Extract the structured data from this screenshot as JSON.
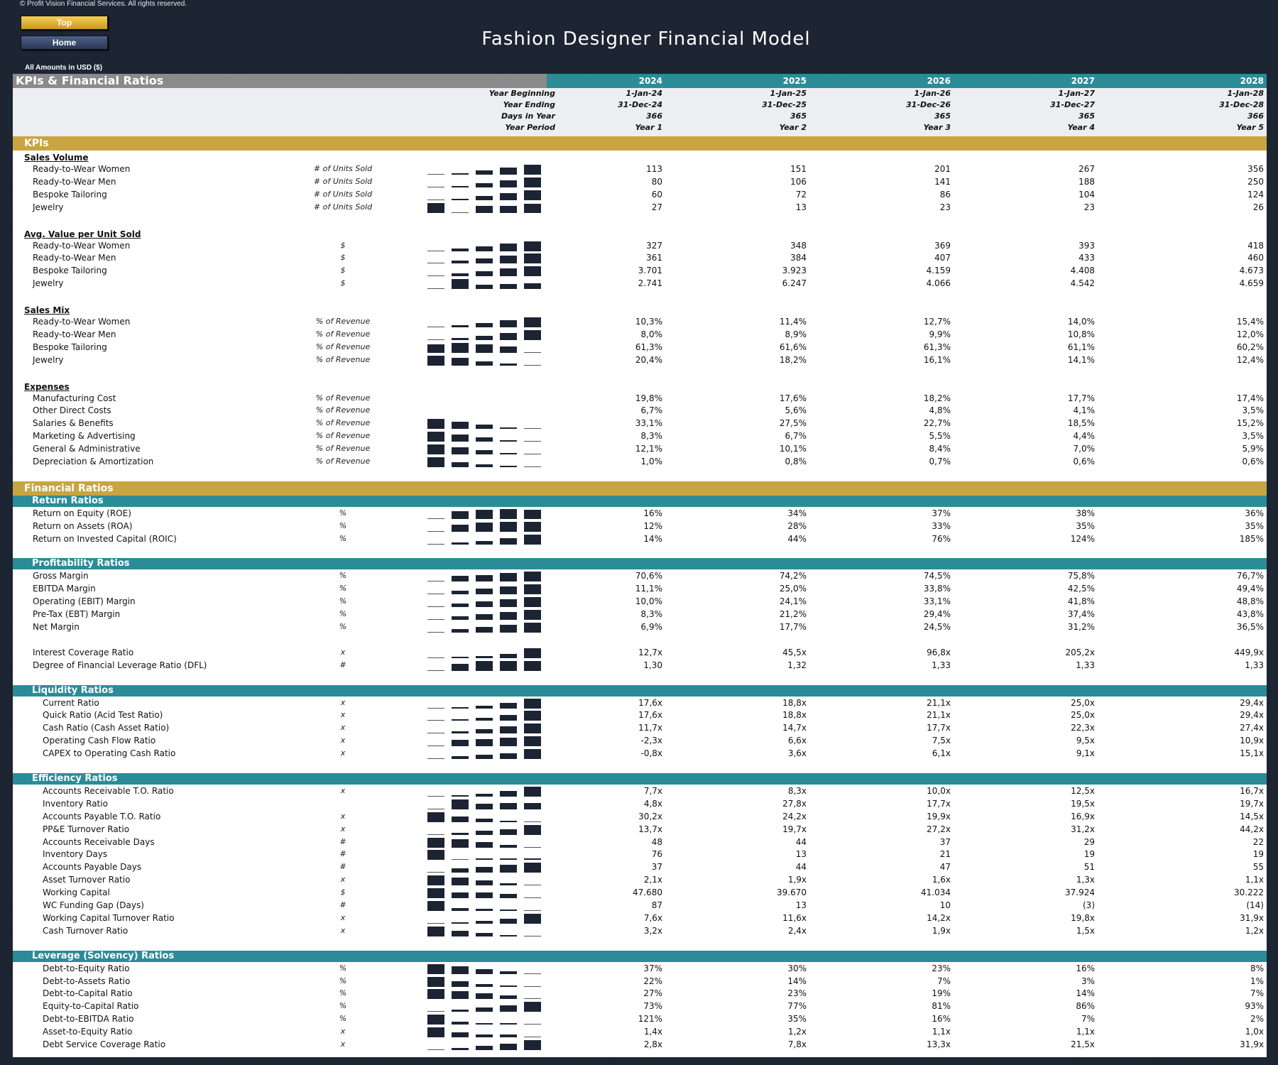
{
  "header": {
    "copyright": "© Profit Vision Financial Services. All rights reserved.",
    "top_button": "Top",
    "home_button": "Home",
    "title": "Fashion Designer Financial Model",
    "amounts_note": "All Amounts in  USD ($)"
  },
  "sheet": {
    "title": "KPIs & Financial Ratios",
    "years": [
      "2024",
      "2025",
      "2026",
      "2027",
      "2028"
    ],
    "meta": [
      {
        "label": "Year Beginning",
        "values": [
          "1-Jan-24",
          "1-Jan-25",
          "1-Jan-26",
          "1-Jan-27",
          "1-Jan-28"
        ]
      },
      {
        "label": "Year Ending",
        "values": [
          "31-Dec-24",
          "31-Dec-25",
          "31-Dec-26",
          "31-Dec-27",
          "31-Dec-28"
        ]
      },
      {
        "label": "Days in Year",
        "values": [
          "366",
          "365",
          "365",
          "365",
          "366"
        ]
      },
      {
        "label": "Year Period",
        "values": [
          "Year 1",
          "Year 2",
          "Year 3",
          "Year 4",
          "Year 5"
        ]
      }
    ]
  },
  "sections": [
    {
      "type": "gold",
      "label": "KPIs"
    },
    {
      "type": "group",
      "label": "Sales Volume"
    },
    {
      "type": "row",
      "label": "Ready-to-Wear Women",
      "unit": "# of Units Sold",
      "values": [
        "113",
        "151",
        "201",
        "267",
        "356"
      ],
      "spark": [
        0,
        0.15,
        0.4,
        0.7,
        1
      ]
    },
    {
      "type": "row",
      "label": "Ready-to-Wear Men",
      "unit": "# of Units Sold",
      "values": [
        "80",
        "106",
        "141",
        "188",
        "250"
      ],
      "spark": [
        0,
        0.15,
        0.4,
        0.7,
        1
      ]
    },
    {
      "type": "row",
      "label": "Bespoke Tailoring",
      "unit": "# of Units Sold",
      "values": [
        "60",
        "72",
        "86",
        "104",
        "124"
      ],
      "spark": [
        0,
        0.15,
        0.4,
        0.7,
        1
      ]
    },
    {
      "type": "row",
      "label": "Jewelry",
      "unit": "# of Units Sold",
      "values": [
        "27",
        "13",
        "23",
        "23",
        "26"
      ],
      "spark": [
        1,
        0,
        0.7,
        0.7,
        0.9
      ]
    },
    {
      "type": "gap"
    },
    {
      "type": "group",
      "label": "Avg. Value per Unit Sold"
    },
    {
      "type": "row",
      "label": "Ready-to-Wear Women",
      "unit": "$",
      "values": [
        "327",
        "348",
        "369",
        "393",
        "418"
      ],
      "spark": [
        0,
        0.25,
        0.5,
        0.75,
        1
      ]
    },
    {
      "type": "row",
      "label": "Ready-to-Wear Men",
      "unit": "$",
      "values": [
        "361",
        "384",
        "407",
        "433",
        "460"
      ],
      "spark": [
        0,
        0.25,
        0.5,
        0.75,
        1
      ]
    },
    {
      "type": "row",
      "label": "Bespoke Tailoring",
      "unit": "$",
      "values": [
        "3.701",
        "3.923",
        "4.159",
        "4.408",
        "4.673"
      ],
      "spark": [
        0,
        0.25,
        0.5,
        0.75,
        1
      ]
    },
    {
      "type": "row",
      "label": "Jewelry",
      "unit": "$",
      "values": [
        "2.741",
        "6.247",
        "4.066",
        "4.542",
        "4.659"
      ],
      "spark": [
        0,
        1,
        0.4,
        0.5,
        0.55
      ]
    },
    {
      "type": "gap"
    },
    {
      "type": "group",
      "label": "Sales Mix"
    },
    {
      "type": "row",
      "label": "Ready-to-Wear Women",
      "unit": "% of Revenue",
      "values": [
        "10,3%",
        "11,4%",
        "12,7%",
        "14,0%",
        "15,4%"
      ],
      "spark": [
        0,
        0.2,
        0.45,
        0.7,
        1
      ]
    },
    {
      "type": "row",
      "label": "Ready-to-Wear Men",
      "unit": "% of Revenue",
      "values": [
        "8,0%",
        "8,9%",
        "9,9%",
        "10,8%",
        "12,0%"
      ],
      "spark": [
        0,
        0.2,
        0.45,
        0.7,
        1
      ]
    },
    {
      "type": "row",
      "label": "Bespoke Tailoring",
      "unit": "% of Revenue",
      "values": [
        "61,3%",
        "61,6%",
        "61,3%",
        "61,1%",
        "60,2%"
      ],
      "spark": [
        0.85,
        1,
        0.85,
        0.65,
        0
      ]
    },
    {
      "type": "row",
      "label": "Jewelry",
      "unit": "% of Revenue",
      "values": [
        "20,4%",
        "18,2%",
        "16,1%",
        "14,1%",
        "12,4%"
      ],
      "spark": [
        1,
        0.75,
        0.45,
        0.2,
        0
      ]
    },
    {
      "type": "gap"
    },
    {
      "type": "group",
      "label": "Expenses"
    },
    {
      "type": "row",
      "label": "Manufacturing Cost",
      "unit": "% of Revenue",
      "values": [
        "19,8%",
        "17,6%",
        "18,2%",
        "17,7%",
        "17,4%"
      ],
      "spark": null
    },
    {
      "type": "row",
      "label": "Other Direct Costs",
      "unit": "% of Revenue",
      "values": [
        "6,7%",
        "5,6%",
        "4,8%",
        "4,1%",
        "3,5%"
      ],
      "spark": null
    },
    {
      "type": "row",
      "label": "Salaries & Benefits",
      "unit": "% of Revenue",
      "values": [
        "33,1%",
        "27,5%",
        "22,7%",
        "18,5%",
        "15,2%"
      ],
      "spark": [
        1,
        0.7,
        0.4,
        0.15,
        0
      ]
    },
    {
      "type": "row",
      "label": "Marketing & Advertising",
      "unit": "% of Revenue",
      "values": [
        "8,3%",
        "6,7%",
        "5,5%",
        "4,4%",
        "3,5%"
      ],
      "spark": [
        1,
        0.7,
        0.4,
        0.15,
        0
      ]
    },
    {
      "type": "row",
      "label": "General & Administrative",
      "unit": "% of Revenue",
      "values": [
        "12,1%",
        "10,1%",
        "8,4%",
        "7,0%",
        "5,9%"
      ],
      "spark": [
        1,
        0.7,
        0.4,
        0.15,
        0
      ]
    },
    {
      "type": "row",
      "label": "Depreciation & Amortization",
      "unit": "% of Revenue",
      "values": [
        "1,0%",
        "0,8%",
        "0,7%",
        "0,6%",
        "0,6%"
      ],
      "spark": [
        1,
        0.5,
        0.25,
        0.05,
        0
      ]
    },
    {
      "type": "gap"
    },
    {
      "type": "gold",
      "label": "Financial Ratios"
    },
    {
      "type": "teal",
      "label": "Return Ratios"
    },
    {
      "type": "row",
      "label": "Return on Equity (ROE)",
      "unit": "%",
      "values": [
        "16%",
        "34%",
        "37%",
        "38%",
        "36%"
      ],
      "spark": [
        0,
        0.8,
        0.95,
        1,
        0.9
      ]
    },
    {
      "type": "row",
      "label": "Return on Assets (ROA)",
      "unit": "%",
      "values": [
        "12%",
        "28%",
        "33%",
        "35%",
        "35%"
      ],
      "spark": [
        0,
        0.7,
        0.9,
        1,
        1
      ]
    },
    {
      "type": "row",
      "label": "Return on Invested Capital (ROIC)",
      "unit": "%",
      "values": [
        "14%",
        "44%",
        "76%",
        "124%",
        "185%"
      ],
      "spark": [
        0,
        0.2,
        0.35,
        0.65,
        1
      ]
    },
    {
      "type": "gap"
    },
    {
      "type": "teal",
      "label": "Profitability Ratios"
    },
    {
      "type": "row",
      "label": "Gross Margin",
      "unit": "%",
      "values": [
        "70,6%",
        "74,2%",
        "74,5%",
        "75,8%",
        "76,7%"
      ],
      "spark": [
        0,
        0.6,
        0.65,
        0.85,
        1
      ]
    },
    {
      "type": "row",
      "label": "EBITDA Margin",
      "unit": "%",
      "values": [
        "11,1%",
        "25,0%",
        "33,8%",
        "42,5%",
        "49,4%"
      ],
      "spark": [
        0,
        0.35,
        0.6,
        0.8,
        1
      ]
    },
    {
      "type": "row",
      "label": "Operating (EBIT) Margin",
      "unit": "%",
      "values": [
        "10,0%",
        "24,1%",
        "33,1%",
        "41,8%",
        "48,8%"
      ],
      "spark": [
        0,
        0.35,
        0.6,
        0.8,
        1
      ]
    },
    {
      "type": "row",
      "label": "Pre-Tax (EBT) Margin",
      "unit": "%",
      "values": [
        "8,3%",
        "21,2%",
        "29,4%",
        "37,4%",
        "43,8%"
      ],
      "spark": [
        0,
        0.35,
        0.6,
        0.8,
        1
      ]
    },
    {
      "type": "row",
      "label": "Net Margin",
      "unit": "%",
      "values": [
        "6,9%",
        "17,7%",
        "24,5%",
        "31,2%",
        "36,5%"
      ],
      "spark": [
        0,
        0.35,
        0.6,
        0.8,
        1
      ]
    },
    {
      "type": "gap"
    },
    {
      "type": "row",
      "label": "Interest Coverage Ratio",
      "unit": "x",
      "values": [
        "12,7x",
        "45,5x",
        "96,8x",
        "205,2x",
        "449,9x"
      ],
      "spark": [
        0,
        0.07,
        0.2,
        0.45,
        1
      ]
    },
    {
      "type": "row",
      "label": "Degree of Financial Leverage Ratio (DFL)",
      "unit": "#",
      "values": [
        "1,30",
        "1,32",
        "1,33",
        "1,33",
        "1,33"
      ],
      "spark": [
        0,
        0.7,
        1,
        1,
        1
      ]
    },
    {
      "type": "gap"
    },
    {
      "type": "teal",
      "label": "Liquidity Ratios"
    },
    {
      "type": "row",
      "indent": true,
      "label": "Current Ratio",
      "unit": "x",
      "values": [
        "17,6x",
        "18,8x",
        "21,1x",
        "25,0x",
        "29,4x"
      ],
      "spark": [
        0,
        0.1,
        0.3,
        0.6,
        1
      ]
    },
    {
      "type": "row",
      "indent": true,
      "label": "Quick Ratio (Acid Test Ratio)",
      "unit": "x",
      "values": [
        "17,6x",
        "18,8x",
        "21,1x",
        "25,0x",
        "29,4x"
      ],
      "spark": [
        0,
        0.1,
        0.3,
        0.6,
        1
      ]
    },
    {
      "type": "row",
      "indent": true,
      "label": "Cash Ratio (Cash Asset Ratio)",
      "unit": "x",
      "values": [
        "11,7x",
        "14,7x",
        "17,7x",
        "22,3x",
        "27,4x"
      ],
      "spark": [
        0,
        0.2,
        0.4,
        0.7,
        1
      ]
    },
    {
      "type": "row",
      "indent": true,
      "label": "Operating Cash Flow Ratio",
      "unit": "x",
      "values": [
        "-2,3x",
        "6,6x",
        "7,5x",
        "9,5x",
        "10,9x"
      ],
      "spark": [
        0,
        0.65,
        0.7,
        0.85,
        1
      ]
    },
    {
      "type": "row",
      "indent": true,
      "label": "CAPEX to Operating Cash Ratio",
      "unit": "x",
      "values": [
        "-0,8x",
        "3,6x",
        "6,1x",
        "9,1x",
        "15,1x"
      ],
      "spark": [
        0,
        0.3,
        0.45,
        0.6,
        1
      ]
    },
    {
      "type": "gap"
    },
    {
      "type": "teal",
      "label": "Efficiency Ratios"
    },
    {
      "type": "row",
      "indent": true,
      "label": "Accounts Receivable T.O. Ratio",
      "unit": "x",
      "values": [
        "7,7x",
        "8,3x",
        "10,0x",
        "12,5x",
        "16,7x"
      ],
      "spark": [
        0,
        0.07,
        0.25,
        0.55,
        1
      ]
    },
    {
      "type": "row",
      "indent": true,
      "label": "Inventory Ratio",
      "unit": "",
      "values": [
        "4,8x",
        "27,8x",
        "17,7x",
        "19,5x",
        "19,7x"
      ],
      "spark": [
        0,
        1,
        0.55,
        0.65,
        0.65
      ]
    },
    {
      "type": "row",
      "indent": true,
      "label": "Accounts Payable T.O. Ratio",
      "unit": "x",
      "values": [
        "30,2x",
        "24,2x",
        "19,9x",
        "16,9x",
        "14,5x"
      ],
      "spark": [
        1,
        0.6,
        0.35,
        0.15,
        0
      ]
    },
    {
      "type": "row",
      "indent": true,
      "label": "PP&E Turnover Ratio",
      "unit": "x",
      "values": [
        "13,7x",
        "19,7x",
        "27,2x",
        "31,2x",
        "44,2x"
      ],
      "spark": [
        0,
        0.2,
        0.45,
        0.6,
        1
      ]
    },
    {
      "type": "row",
      "indent": true,
      "label": "Accounts Receivable Days",
      "unit": "#",
      "values": [
        "48",
        "44",
        "37",
        "29",
        "22"
      ],
      "spark": [
        1,
        0.85,
        0.55,
        0.25,
        0
      ]
    },
    {
      "type": "row",
      "indent": true,
      "label": "Inventory Days",
      "unit": "#",
      "values": [
        "76",
        "13",
        "21",
        "19",
        "19"
      ],
      "spark": [
        1,
        0,
        0.12,
        0.1,
        0.1
      ]
    },
    {
      "type": "row",
      "indent": true,
      "label": "Accounts Payable Days",
      "unit": "#",
      "values": [
        "37",
        "44",
        "47",
        "51",
        "55"
      ],
      "spark": [
        0,
        0.4,
        0.55,
        0.75,
        1
      ]
    },
    {
      "type": "row",
      "indent": true,
      "label": "Asset Turnover Ratio",
      "unit": "x",
      "values": [
        "2,1x",
        "1,9x",
        "1,6x",
        "1,3x",
        "1,1x"
      ],
      "spark": [
        1,
        0.8,
        0.5,
        0.2,
        0
      ]
    },
    {
      "type": "row",
      "indent": true,
      "label": "Working Capital",
      "unit": "$",
      "values": [
        "47.680",
        "39.670",
        "41.034",
        "37.924",
        "30.222"
      ],
      "spark": [
        1,
        0.55,
        0.6,
        0.45,
        0
      ]
    },
    {
      "type": "row",
      "indent": true,
      "label": "WC Funding Gap (Days)",
      "unit": "#",
      "values": [
        "87",
        "13",
        "10",
        "(3)",
        "(14)"
      ],
      "spark": [
        1,
        0.25,
        0.2,
        0.1,
        0
      ]
    },
    {
      "type": "row",
      "indent": true,
      "label": "Working Capital Turnover Ratio",
      "unit": "x",
      "values": [
        "7,6x",
        "11,6x",
        "14,2x",
        "19,8x",
        "31,9x"
      ],
      "spark": [
        0,
        0.15,
        0.3,
        0.5,
        1
      ]
    },
    {
      "type": "row",
      "indent": true,
      "label": "Cash Turnover Ratio",
      "unit": "x",
      "values": [
        "3,2x",
        "2,4x",
        "1,9x",
        "1,5x",
        "1,2x"
      ],
      "spark": [
        1,
        0.6,
        0.35,
        0.15,
        0
      ]
    },
    {
      "type": "gap"
    },
    {
      "type": "teal",
      "label": "Leverage (Solvency) Ratios"
    },
    {
      "type": "row",
      "indent": true,
      "label": "Debt-to-Equity Ratio",
      "unit": "%",
      "values": [
        "37%",
        "30%",
        "23%",
        "16%",
        "8%"
      ],
      "spark": [
        1,
        0.75,
        0.5,
        0.25,
        0
      ]
    },
    {
      "type": "row",
      "indent": true,
      "label": "Debt-to-Assets Ratio",
      "unit": "%",
      "values": [
        "22%",
        "14%",
        "7%",
        "3%",
        "1%"
      ],
      "spark": [
        1,
        0.6,
        0.3,
        0.1,
        0
      ]
    },
    {
      "type": "row",
      "indent": true,
      "label": "Debt-to-Capital Ratio",
      "unit": "%",
      "values": [
        "27%",
        "23%",
        "19%",
        "14%",
        "7%"
      ],
      "spark": [
        1,
        0.8,
        0.6,
        0.35,
        0
      ]
    },
    {
      "type": "row",
      "indent": true,
      "label": "Equity-to-Capital Ratio",
      "unit": "%",
      "values": [
        "73%",
        "77%",
        "81%",
        "86%",
        "93%"
      ],
      "spark": [
        0,
        0.2,
        0.4,
        0.65,
        1
      ]
    },
    {
      "type": "row",
      "indent": true,
      "label": "Debt-to-EBITDA Ratio",
      "unit": "%",
      "values": [
        "121%",
        "35%",
        "16%",
        "7%",
        "2%"
      ],
      "spark": [
        1,
        0.3,
        0.12,
        0.05,
        0
      ]
    },
    {
      "type": "row",
      "indent": true,
      "label": "Asset-to-Equity Ratio",
      "unit": "x",
      "values": [
        "1,4x",
        "1,2x",
        "1,1x",
        "1,1x",
        "1,0x"
      ],
      "spark": [
        1,
        0.5,
        0.25,
        0.25,
        0
      ]
    },
    {
      "type": "row",
      "indent": true,
      "label": "Debt Service Coverage Ratio",
      "unit": "x",
      "values": [
        "2,8x",
        "7,8x",
        "13,3x",
        "21,5x",
        "31,9x"
      ],
      "spark": [
        0,
        0.2,
        0.4,
        0.65,
        1
      ]
    }
  ],
  "colors": {
    "background": "#1c2433",
    "gold": "#c9a542",
    "teal": "#2b8c98",
    "gray": "#8a8a8a",
    "bar": "#1c2433"
  }
}
